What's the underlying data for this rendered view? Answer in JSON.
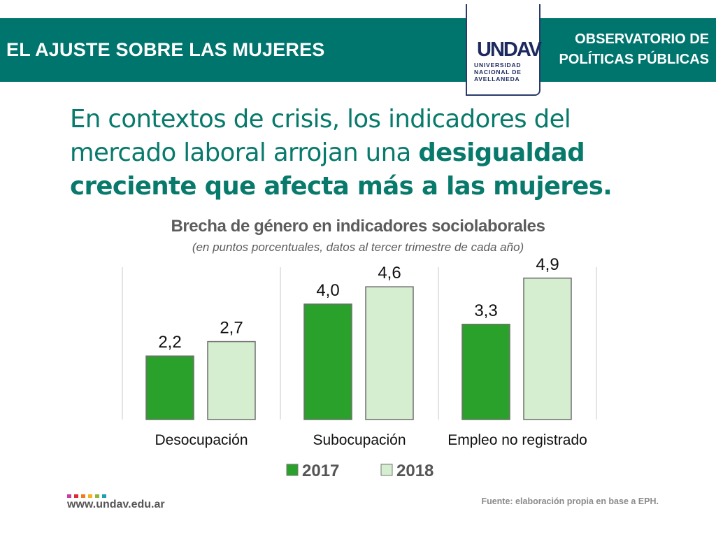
{
  "header": {
    "title": "EL AJUSTE SOBRE LAS MUJERES",
    "logo_mark": "UNDAV",
    "logo_text": "UNIVERSIDAD NACIONAL DE AVELLANEDA",
    "right_line1": "OBSERVATORIO DE",
    "right_line2": "POLÍTICAS PÚBLICAS",
    "banner_color": "#00756d"
  },
  "headline": {
    "part1": "En contextos de crisis, los indicadores del mercado laboral arrojan una ",
    "bold": "desigualdad creciente que afecta más a las mujeres."
  },
  "chart_data": {
    "type": "bar",
    "title": "Brecha de género en indicadores sociolaborales",
    "subtitle": "(en puntos porcentuales, datos al tercer trimestre de cada año)",
    "categories": [
      "Desocupación",
      "Subocupación",
      "Empleo no registrado"
    ],
    "series": [
      {
        "name": "2017",
        "values": [
          2.2,
          4.0,
          3.3
        ],
        "labels": [
          "2,2",
          "4,0",
          "3,3"
        ],
        "color": "#2aa12a"
      },
      {
        "name": "2018",
        "values": [
          2.7,
          4.6,
          4.9
        ],
        "labels": [
          "2,7",
          "4,6",
          "4,9"
        ],
        "color": "#d5eed0"
      }
    ],
    "xlabel": "",
    "ylabel": "",
    "ylim": [
      0,
      5.5
    ],
    "grid": false,
    "legend": "bottom-center"
  },
  "footer": {
    "url": "www.undav.edu.ar",
    "source": "Fuente: elaboración propia en base a EPH.",
    "dot_colors": [
      "#c83c9c",
      "#e0282e",
      "#f07a1e",
      "#f5b21c",
      "#8cb63c",
      "#1aa0b4"
    ]
  }
}
